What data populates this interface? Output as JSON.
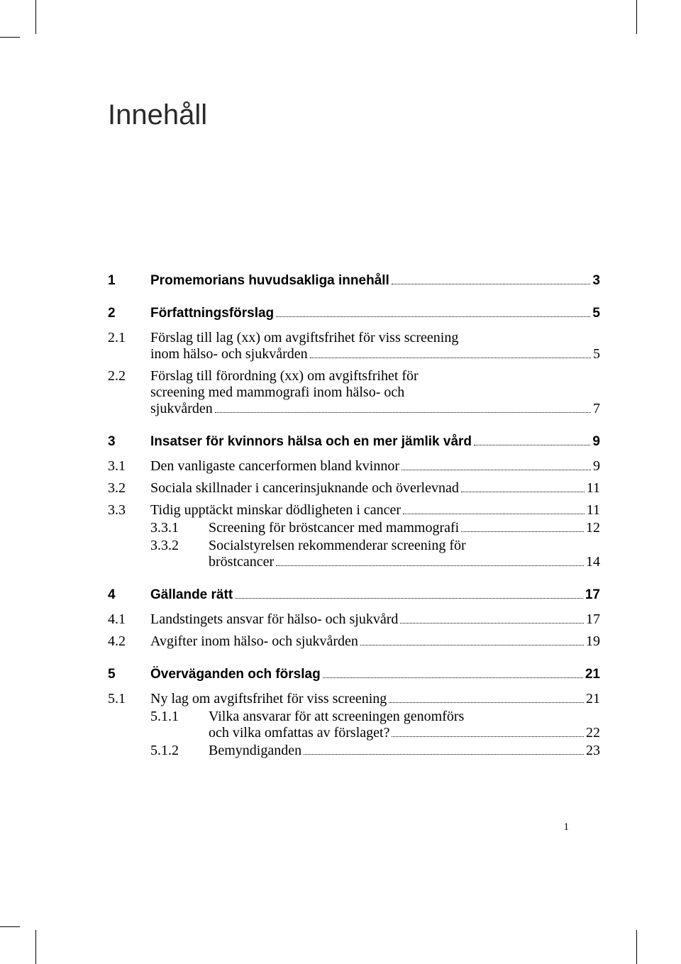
{
  "title": "Innehåll",
  "page_number": "1",
  "toc": {
    "s1": {
      "num": "1",
      "label": "Promemorians huvudsakliga innehåll",
      "page": "3"
    },
    "s2": {
      "num": "2",
      "label": "Författningsförslag",
      "page": "5"
    },
    "s2_1": {
      "num": "2.1",
      "line1": "Förslag till lag (xx) om avgiftsfrihet för viss screening",
      "line2": "inom hälso- och sjukvården",
      "page": "5"
    },
    "s2_2": {
      "num": "2.2",
      "line1": "Förslag till förordning (xx) om avgiftsfrihet för",
      "line2": "screening med mammografi inom hälso- och",
      "line3": "sjukvården",
      "page": "7"
    },
    "s3": {
      "num": "3",
      "label": "Insatser för kvinnors hälsa och en mer jämlik vård",
      "page": "9"
    },
    "s3_1": {
      "num": "3.1",
      "label": "Den vanligaste cancerformen bland kvinnor",
      "page": "9"
    },
    "s3_2": {
      "num": "3.2",
      "label": "Sociala skillnader i cancerinsjuknande och överlevnad",
      "page": "11"
    },
    "s3_3": {
      "num": "3.3",
      "label": "Tidig upptäckt minskar dödligheten i cancer",
      "page": "11"
    },
    "s3_3_1": {
      "num": "3.3.1",
      "label": "Screening för bröstcancer med mammografi",
      "page": "12"
    },
    "s3_3_2": {
      "num": "3.3.2",
      "line1": "Socialstyrelsen rekommenderar screening för",
      "line2": "bröstcancer",
      "page": "14"
    },
    "s4": {
      "num": "4",
      "label": "Gällande rätt",
      "page": "17"
    },
    "s4_1": {
      "num": "4.1",
      "label": "Landstingets ansvar för hälso- och sjukvård",
      "page": "17"
    },
    "s4_2": {
      "num": "4.2",
      "label": "Avgifter inom hälso- och sjukvården",
      "page": "19"
    },
    "s5": {
      "num": "5",
      "label": "Överväganden och förslag",
      "page": "21"
    },
    "s5_1": {
      "num": "5.1",
      "label": "Ny lag om avgiftsfrihet för viss screening",
      "page": "21"
    },
    "s5_1_1": {
      "num": "5.1.1",
      "line1": "Vilka ansvarar för att screeningen genomförs",
      "line2": "och vilka omfattas av förslaget?",
      "page": "22"
    },
    "s5_1_2": {
      "num": "5.1.2",
      "label": "Bemyndiganden",
      "page": "23"
    }
  },
  "style": {
    "bg": "#ffffff",
    "text": "#000000",
    "title_color": "#2a2a2a",
    "title_fontsize": 40,
    "bold_fontsize": 19,
    "serif_fontsize": 20
  }
}
